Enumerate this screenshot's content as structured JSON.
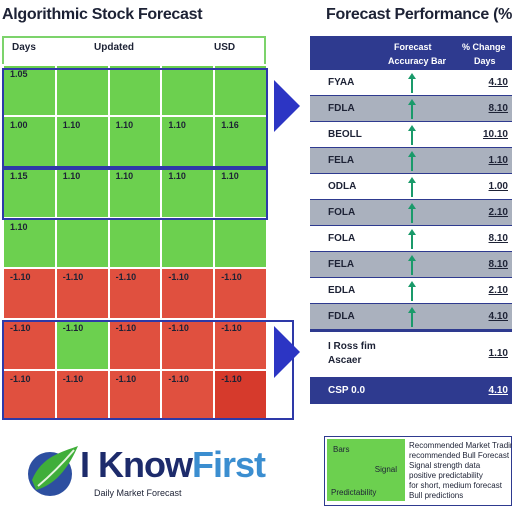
{
  "titles": {
    "left": "Algorithmic Stock Forecast",
    "right": "Forecast Performance (%"
  },
  "heatmap": {
    "header": {
      "col1": "Days",
      "col2": "Updated",
      "col3": "USD"
    },
    "rows": [
      {
        "cells": [
          {
            "v": "1.05",
            "c": "g"
          },
          {
            "v": "",
            "c": "g"
          },
          {
            "v": "",
            "c": "g"
          },
          {
            "v": "",
            "c": "g"
          },
          {
            "v": "",
            "c": "g"
          }
        ]
      },
      {
        "cells": [
          {
            "v": "1.00",
            "c": "g"
          },
          {
            "v": "1.10",
            "c": "g"
          },
          {
            "v": "1.10",
            "c": "g"
          },
          {
            "v": "1.10",
            "c": "g"
          },
          {
            "v": "1.16",
            "c": "g"
          }
        ]
      },
      {
        "cells": [
          {
            "v": "1.15",
            "c": "g"
          },
          {
            "v": "1.10",
            "c": "g"
          },
          {
            "v": "1.10",
            "c": "g"
          },
          {
            "v": "1.10",
            "c": "g"
          },
          {
            "v": "1.10",
            "c": "g"
          }
        ]
      },
      {
        "cells": [
          {
            "v": "1.10",
            "c": "g"
          },
          {
            "v": "",
            "c": "g"
          },
          {
            "v": "",
            "c": "g"
          },
          {
            "v": "",
            "c": "g"
          },
          {
            "v": "",
            "c": "g"
          }
        ]
      },
      {
        "cells": [
          {
            "v": "-1.10",
            "c": "r"
          },
          {
            "v": "-1.10",
            "c": "r"
          },
          {
            "v": "-1.10",
            "c": "r"
          },
          {
            "v": "-1.10",
            "c": "r"
          },
          {
            "v": "-1.10",
            "c": "r"
          }
        ]
      },
      {
        "cells": [
          {
            "v": "-1.10",
            "c": "r"
          },
          {
            "v": "-1.10",
            "c": "g"
          },
          {
            "v": "-1.10",
            "c": "r"
          },
          {
            "v": "-1.10",
            "c": "r"
          },
          {
            "v": "-1.10",
            "c": "r"
          }
        ]
      },
      {
        "cells": [
          {
            "v": "-1.10",
            "c": "r"
          },
          {
            "v": "-1.10",
            "c": "r"
          },
          {
            "v": "-1.10",
            "c": "r"
          },
          {
            "v": "-1.10",
            "c": "r"
          },
          {
            "v": "-1.10",
            "c": "dark"
          }
        ]
      }
    ]
  },
  "performance": {
    "header": {
      "col1": "Forecast",
      "col1_sub": "Accuracy Bar",
      "col2": "% Change",
      "col2_sub": "Days"
    },
    "rows": [
      {
        "name": "FYAA",
        "value": "4.10",
        "shade": "w"
      },
      {
        "name": "FDLA",
        "value": "8.10",
        "shade": "gr"
      },
      {
        "name": "BEOLL",
        "value": "10.10",
        "shade": "w"
      },
      {
        "name": "FELA",
        "value": "1.10",
        "shade": "gr"
      },
      {
        "name": "ODLA",
        "value": "1.00",
        "shade": "w"
      },
      {
        "name": "FOLA",
        "value": "2.10",
        "shade": "gr"
      },
      {
        "name": "FOLA",
        "value": "8.10",
        "shade": "w"
      },
      {
        "name": "FELA",
        "value": "8.10",
        "shade": "gr"
      },
      {
        "name": "EDLA",
        "value": "2.10",
        "shade": "w"
      },
      {
        "name": "FDLA",
        "value": "4.10",
        "shade": "gr"
      }
    ],
    "tall_row": {
      "name_line1": "I Ross fim",
      "name_line2": "Ascaer",
      "value": "1.10"
    },
    "footer": {
      "name": "CSP 0.0",
      "value": "4.10"
    }
  },
  "logo": {
    "brand_dark": "I Know",
    "brand_light": "First",
    "tagline": "Daily Market Forecast"
  },
  "legend": {
    "swatch_label_1": "Bars",
    "swatch_label_2": "Signal",
    "swatch_label_3": "Predictability",
    "lines": [
      "Recommended Market Trading",
      "recommended Bull Forecast",
      "Signal strength data",
      "positive predictability",
      "for short, medium forecast",
      "Bull predictions"
    ]
  }
}
